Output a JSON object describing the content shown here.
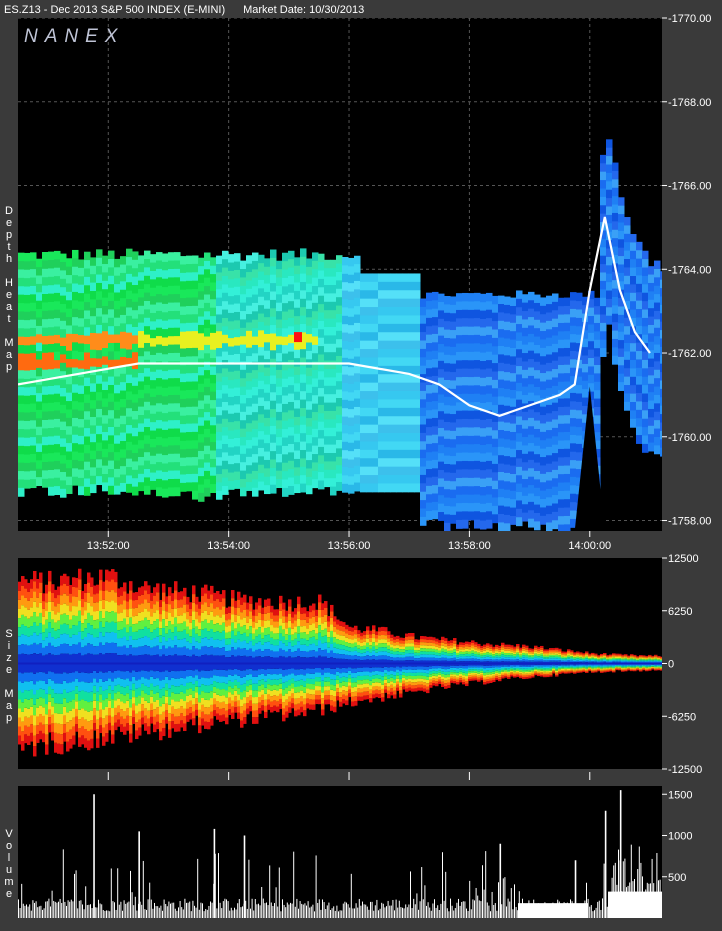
{
  "header": {
    "symbol": "ES.Z13 - Dec 2013 S&P 500 INDEX (E-MINI)",
    "market_date": "Market Date: 10/30/2013"
  },
  "brand": "NANEX",
  "panels": {
    "depth": {
      "label": "Depth Heat Map",
      "label_chars": [
        "D",
        "e",
        "p",
        "t",
        "h",
        "",
        "H",
        "e",
        "a",
        "t",
        "",
        "M",
        "a",
        "p"
      ]
    },
    "size": {
      "label": "Size Map",
      "label_chars": [
        "S",
        "i",
        "z",
        "e",
        "",
        "M",
        "a",
        "p"
      ]
    },
    "volume": {
      "label": "Volume",
      "label_chars": [
        "V",
        "o",
        "l",
        "u",
        "m",
        "e"
      ]
    }
  },
  "colors": {
    "background": "#000000",
    "frame": "#3a3a3a",
    "grid": "#555555",
    "price_line": "#ffffff"
  },
  "chart_data": [
    {
      "type": "heatmap",
      "title": "Depth Heat Map",
      "x_ticks": [
        "13:52:00",
        "13:54:00",
        "13:56:00",
        "13:58:00",
        "14:00:00"
      ],
      "y_ticks": [
        "1770.00",
        "1768.00",
        "1766.00",
        "1764.00",
        "1762.00",
        "1760.00",
        "1758.00"
      ],
      "ylim": [
        1757.75,
        1770.0
      ],
      "price_series": {
        "x": [
          "13:50:30",
          "13:51:30",
          "13:52:30",
          "13:53:30",
          "13:54:30",
          "13:55:30",
          "13:56:00",
          "13:57:00",
          "13:57:30",
          "13:58:00",
          "13:58:30",
          "13:59:00",
          "13:59:30",
          "13:59:45",
          "14:00:00",
          "14:00:15",
          "14:00:30",
          "14:00:45",
          "14:01:00"
        ],
        "y": [
          1761.25,
          1761.5,
          1761.75,
          1761.75,
          1761.75,
          1761.75,
          1761.75,
          1761.5,
          1761.25,
          1760.75,
          1760.5,
          1760.75,
          1761.0,
          1761.25,
          1763.5,
          1765.25,
          1763.5,
          1762.5,
          1762.0
        ]
      },
      "grid": true,
      "legend": "none"
    },
    {
      "type": "area",
      "title": "Size Map",
      "x_ticks": [
        "13:52:00",
        "13:54:00",
        "13:56:00",
        "13:58:00",
        "14:00:00"
      ],
      "y_ticks": [
        "12500",
        "6250",
        "0",
        "-6250",
        "-12500"
      ],
      "ylim": [
        -12500,
        12500
      ],
      "series": [
        {
          "x": [
            "13:50:30",
            "13:51:00",
            "13:51:30",
            "13:52:00",
            "13:52:30",
            "13:53:00",
            "13:53:30",
            "13:54:00",
            "13:54:30",
            "13:55:00",
            "13:55:30",
            "13:56:00",
            "13:56:30",
            "13:57:00",
            "13:57:30",
            "13:58:00",
            "13:58:30",
            "13:59:00",
            "13:59:30",
            "14:00:00",
            "14:00:30",
            "14:01:00"
          ],
          "upper": [
            9800,
            9600,
            10000,
            10300,
            9000,
            8600,
            8300,
            7600,
            7400,
            7200,
            7300,
            4200,
            3900,
            3200,
            2800,
            2500,
            2200,
            2000,
            1600,
            1200,
            1000,
            900
          ],
          "lower": [
            -10000,
            -9500,
            -9200,
            -8700,
            -8200,
            -7800,
            -7200,
            -6800,
            -6400,
            -6000,
            -5500,
            -4600,
            -4000,
            -3500,
            -2800,
            -2400,
            -1900,
            -1600,
            -1300,
            -1000,
            -900,
            -800
          ]
        }
      ],
      "grid": false
    },
    {
      "type": "bar",
      "title": "Volume",
      "x_ticks": [
        "13:52:00",
        "13:54:00",
        "13:56:00",
        "13:58:00",
        "14:00:00"
      ],
      "y_ticks": [
        "1500",
        "1000",
        "500"
      ],
      "ylim": [
        0,
        1600
      ],
      "peaks": {
        "x": [
          "13:51:45",
          "13:52:30",
          "13:53:45",
          "13:54:15",
          "13:58:30",
          "13:59:45",
          "14:00:15",
          "14:00:30"
        ],
        "values": [
          1500,
          1050,
          1080,
          1000,
          900,
          700,
          1300,
          1550
        ]
      },
      "grid": false
    }
  ]
}
